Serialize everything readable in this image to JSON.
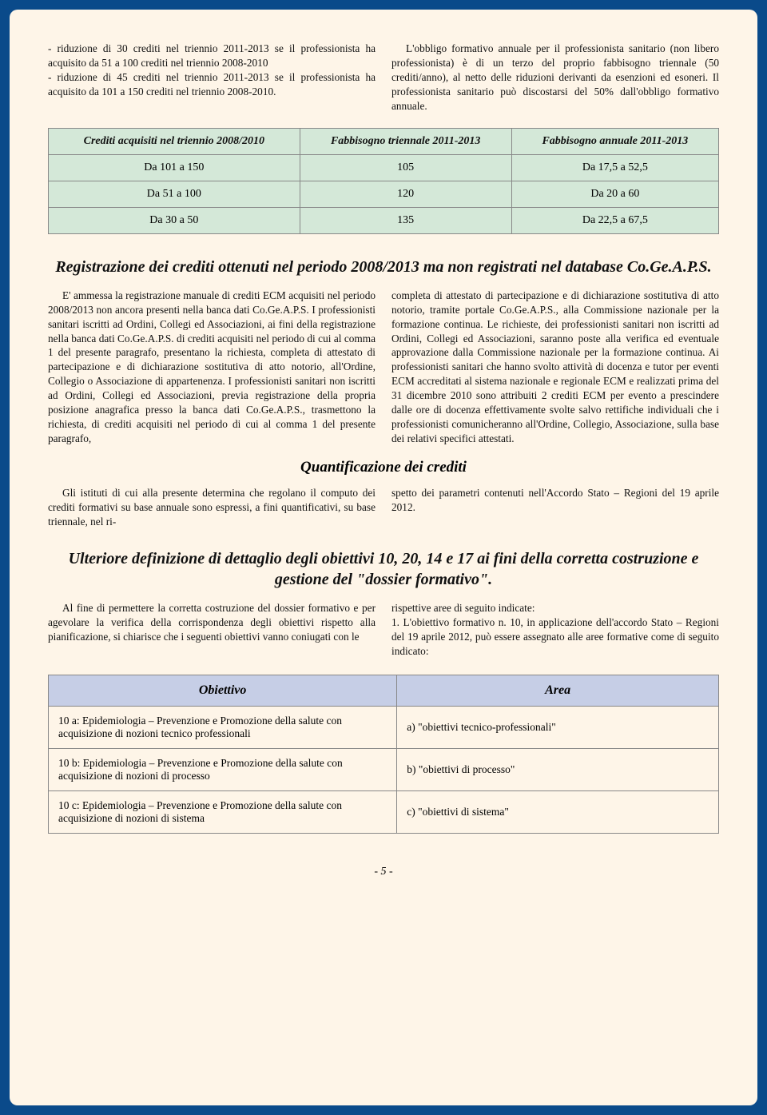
{
  "intro": {
    "left": "- riduzione di 30 crediti nel triennio 2011-2013 se il professionista ha acquisito da 51 a 100 crediti nel triennio 2008-2010\n- riduzione di 45 crediti nel triennio 2011-2013 se il professionista ha acquisito da 101 a 150 crediti nel triennio 2008-2010.",
    "right": "L'obbligo formativo annuale per il professionista sanitario (non libero professionista) è di un terzo del proprio fabbisogno triennale (50 crediti/anno), al netto delle riduzioni derivanti da esenzioni ed esoneri. Il professionista sanitario può discostarsi del 50% dall'obbligo formativo annuale."
  },
  "table1": {
    "columns": [
      "Crediti acquisiti nel triennio 2008/2010",
      "Fabbisogno triennale 2011-2013",
      "Fabbisogno annuale 2011-2013"
    ],
    "rows": [
      [
        "Da 101 a 150",
        "105",
        "Da 17,5 a 52,5"
      ],
      [
        "Da 51 a 100",
        "120",
        "Da 20 a 60"
      ],
      [
        "Da 30 a 50",
        "135",
        "Da 22,5 a 67,5"
      ]
    ],
    "header_bg": "#d4e8d8",
    "cell_bg": "#d4e8d8",
    "border_color": "#888888"
  },
  "section1": {
    "title": "Registrazione dei crediti ottenuti nel periodo 2008/2013 ma non registrati nel database Co.Ge.A.P.S.",
    "left": "E' ammessa la registrazione manuale di crediti ECM acquisiti nel periodo 2008/2013 non ancora presenti nella banca dati Co.Ge.A.P.S. I professionisti sanitari iscritti ad Ordini, Collegi ed Associazioni, ai fini della registrazione nella banca dati Co.Ge.A.P.S. di crediti acquisiti nel periodo di cui al comma 1 del presente paragrafo, presentano la richiesta, completa di attestato di partecipazione e di dichiarazione sostitutiva di atto notorio, all'Ordine, Collegio o Associazione di appartenenza. I professionisti sanitari non iscritti ad Ordini, Collegi ed Associazioni, previa registrazione della propria posizione anagrafica presso la banca dati Co.Ge.A.P.S., trasmettono la richiesta, di crediti acquisiti nel periodo di cui al comma 1 del presente paragrafo,",
    "right": "completa di attestato di partecipazione e di dichiarazione sostitutiva di atto notorio, tramite portale Co.Ge.A.P.S., alla Commissione nazionale per la formazione continua. Le richieste, dei professionisti sanitari non iscritti ad Ordini, Collegi ed Associazioni, saranno poste alla verifica ed eventuale approvazione dalla Commissione nazionale per la formazione continua. Ai professionisti sanitari che hanno svolto attività di docenza e tutor per eventi ECM accreditati al sistema nazionale e regionale ECM e realizzati prima del 31 dicembre 2010 sono attribuiti 2 crediti ECM per evento a prescindere dalle ore di docenza effettivamente svolte salvo rettifiche individuali che i professionisti comunicheranno all'Ordine, Collegio, Associazione, sulla base dei relativi specifici attestati."
  },
  "section2": {
    "title": "Quantificazione dei crediti",
    "left": "Gli istituti di cui alla presente determina che regolano il computo dei crediti formativi su base annuale sono espressi, a fini quantificativi, su base triennale, nel ri-",
    "right": "spetto dei parametri contenuti nell'Accordo Stato – Regioni del 19 aprile 2012."
  },
  "section3": {
    "title": "Ulteriore definizione di dettaglio degli obiettivi 10, 20, 14 e 17 ai fini della corretta costruzione e gestione del \"dossier formativo\".",
    "left": "Al fine di permettere la corretta costruzione del dossier formativo e per agevolare la verifica della corrispondenza degli obiettivi rispetto alla pianificazione, si chiarisce che i seguenti obiettivi vanno coniugati con le",
    "right": "rispettive aree di seguito indicate:\n1. L'obiettivo formativo n. 10, in applicazione dell'accordo Stato – Regioni del 19 aprile 2012, può essere assegnato alle aree formative come di seguito indicato:"
  },
  "table2": {
    "columns": [
      "Obiettivo",
      "Area"
    ],
    "rows": [
      [
        "10 a: Epidemiologia – Prevenzione e Promozione della salute con acquisizione di nozioni tecnico professionali",
        "a) \"obiettivi tecnico-professionali\""
      ],
      [
        "10 b: Epidemiologia – Prevenzione e Promozione della salute con acquisizione di nozioni di processo",
        "b) \"obiettivi di processo\""
      ],
      [
        "10 c: Epidemiologia – Prevenzione e Promozione della salute con acquisizione di nozioni di sistema",
        "c) \"obiettivi di sistema\""
      ]
    ],
    "header_bg": "#c6cee6",
    "border_color": "#888888"
  },
  "pagenum": "- 5 -",
  "colors": {
    "page_bg": "#fef5e8",
    "outer_bg": "#0a4a8a",
    "text": "#111111"
  }
}
